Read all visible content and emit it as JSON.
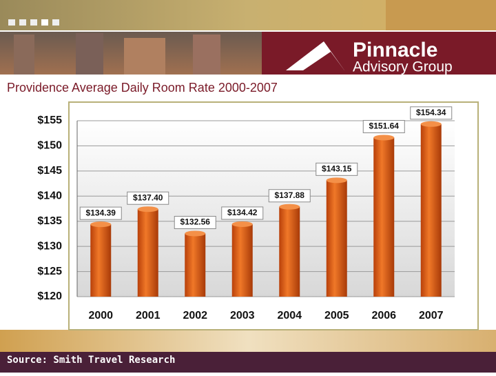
{
  "header": {
    "brand": "Pinnacle",
    "tagline": "Advisory Group"
  },
  "chart_data": {
    "type": "bar",
    "title": "Providence Average Daily Room Rate 2000-2007",
    "categories": [
      "2000",
      "2001",
      "2002",
      "2003",
      "2004",
      "2005",
      "2006",
      "2007"
    ],
    "values": [
      134.39,
      137.4,
      132.56,
      134.42,
      137.88,
      143.15,
      151.64,
      154.34
    ],
    "value_labels": [
      "$134.39",
      "$137.40",
      "$132.56",
      "$134.42",
      "$137.88",
      "$143.15",
      "$151.64",
      "$154.34"
    ],
    "color": "#e8641a",
    "ylim": [
      120,
      155
    ],
    "yticks": [
      {
        "value": 120,
        "label": "$120"
      },
      {
        "value": 125,
        "label": "$125"
      },
      {
        "value": 130,
        "label": "$130"
      },
      {
        "value": 135,
        "label": "$135"
      },
      {
        "value": 140,
        "label": "$140"
      },
      {
        "value": 145,
        "label": "$145"
      },
      {
        "value": 150,
        "label": "$150"
      },
      {
        "value": 155,
        "label": "$155"
      }
    ],
    "grid": true
  },
  "footer": {
    "source": "Source: Smith Travel Research"
  }
}
